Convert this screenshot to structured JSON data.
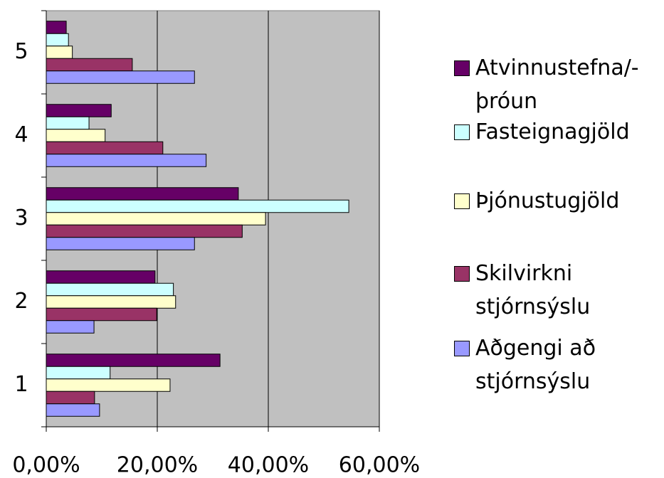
{
  "chart_data": {
    "type": "bar",
    "orientation": "horizontal",
    "categories": [
      "1",
      "2",
      "3",
      "4",
      "5"
    ],
    "series": [
      {
        "name": "Atvinnustefna/-þróun",
        "color": "#660066",
        "values": [
          31.3,
          19.6,
          34.6,
          11.7,
          3.6
        ]
      },
      {
        "name": "Fasteignagjöld",
        "color": "#ccffff",
        "values": [
          11.5,
          22.9,
          54.5,
          7.7,
          4.0
        ]
      },
      {
        "name": "Þjónustugjöld",
        "color": "#ffffcc",
        "values": [
          22.3,
          23.3,
          39.5,
          10.6,
          4.7
        ]
      },
      {
        "name": "Skilvirkni stjórnsýslu",
        "color": "#993366",
        "values": [
          8.7,
          19.9,
          35.3,
          21.0,
          15.5
        ]
      },
      {
        "name": "Aðgengi að stjórnsýslu",
        "color": "#9999ff",
        "values": [
          9.6,
          8.6,
          26.7,
          28.8,
          26.7
        ]
      }
    ],
    "xlim": [
      0,
      60
    ],
    "xticks": [
      {
        "value": 0,
        "label": "0,00%"
      },
      {
        "value": 20,
        "label": "20,00%"
      },
      {
        "value": 40,
        "label": "40,00%"
      },
      {
        "value": 60,
        "label": "60,00%"
      }
    ],
    "grid": true,
    "legend": "right",
    "plot_background": "#c0c0c0"
  }
}
